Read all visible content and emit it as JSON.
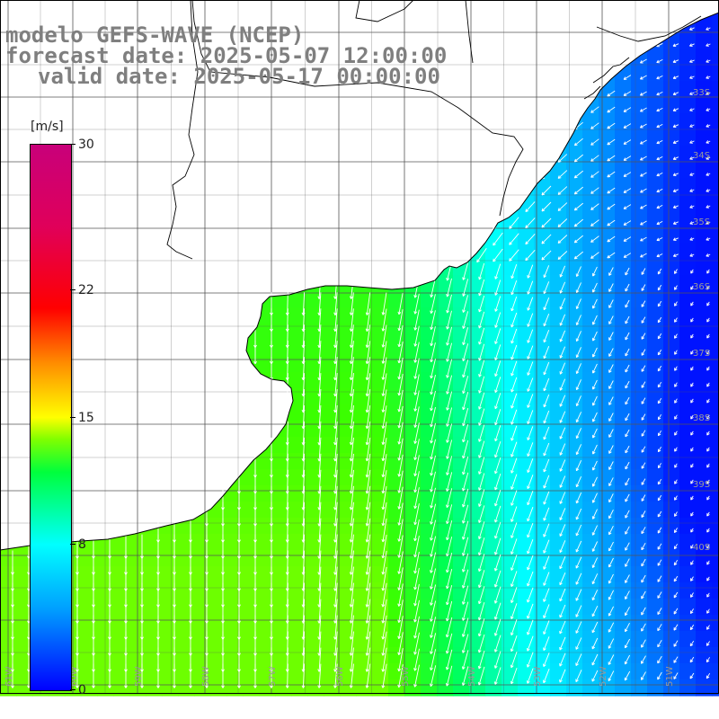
{
  "title": {
    "line1": "modelo GEFS-WAVE (NCEP)",
    "line2": "forecast date: 2025-05-07 12:00:00",
    "line3": "valid date: 2025-05-17 00:00:00"
  },
  "colorbar": {
    "unit": "[m/s]",
    "ticks": [
      {
        "label": "30",
        "value": 30
      },
      {
        "label": "22",
        "value": 22
      },
      {
        "label": "15",
        "value": 15
      },
      {
        "label": "8",
        "value": 8
      },
      {
        "label": "0",
        "value": 0
      }
    ],
    "min": 0,
    "max": 30
  },
  "map": {
    "lat_labels": [
      {
        "label": "33S",
        "lat": -33
      },
      {
        "label": "34S",
        "lat": -34
      },
      {
        "label": "35S",
        "lat": -35
      },
      {
        "label": "36S",
        "lat": -36
      },
      {
        "label": "37S",
        "lat": -37
      },
      {
        "label": "38S",
        "lat": -38
      },
      {
        "label": "39S",
        "lat": -39
      },
      {
        "label": "40S",
        "lat": -40
      }
    ],
    "lon_labels": [
      {
        "label": "61W",
        "lon": -61
      },
      {
        "label": "60W",
        "lon": -60
      },
      {
        "label": "59W",
        "lon": -59
      },
      {
        "label": "58W",
        "lon": -58
      },
      {
        "label": "57W",
        "lon": -57
      },
      {
        "label": "56W",
        "lon": -56
      },
      {
        "label": "55W",
        "lon": -55
      },
      {
        "label": "54W",
        "lon": -54
      },
      {
        "label": "53W",
        "lon": -53
      },
      {
        "label": "52W",
        "lon": -52
      },
      {
        "label": "51W",
        "lon": -51
      }
    ],
    "colors": {
      "land": "#ffffff",
      "coast": "#000000",
      "grid": "#555555",
      "arrow": "#ffffff"
    }
  }
}
